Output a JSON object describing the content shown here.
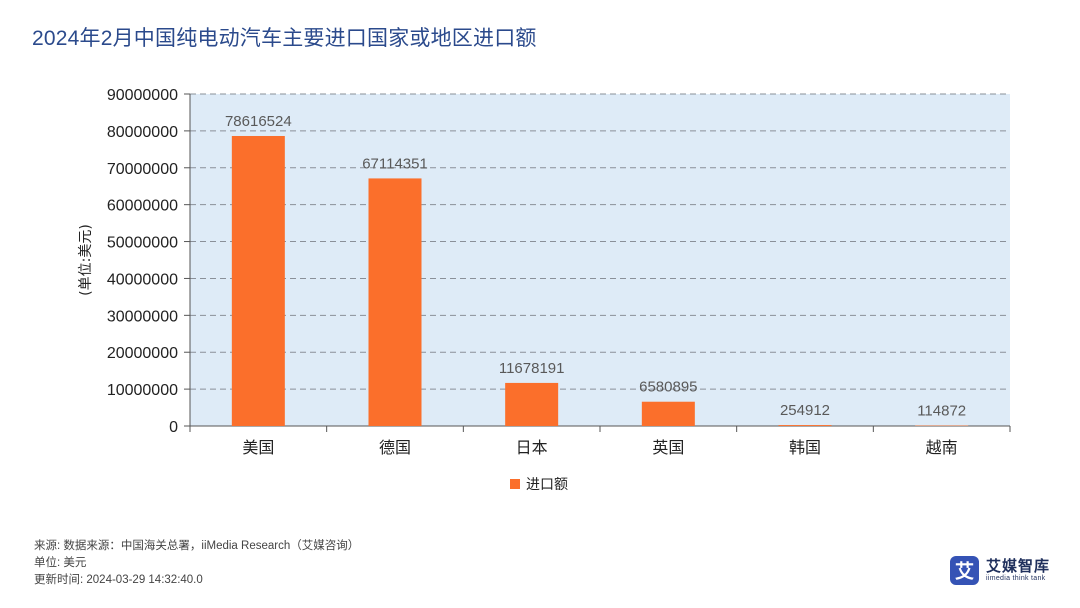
{
  "title": "2024年2月中国纯电动汽车主要进口国家或地区进口额",
  "chart_data": {
    "type": "bar",
    "title": "2024年2月中国纯电动汽车主要进口国家或地区进口额",
    "categories": [
      "美国",
      "德国",
      "日本",
      "英国",
      "韩国",
      "越南"
    ],
    "series": [
      {
        "name": "进口额",
        "values": [
          78616524,
          67114351,
          11678191,
          6580895,
          254912,
          114872
        ]
      }
    ],
    "data_labels": [
      "78616524",
      "67114351",
      "11678191",
      "6580895",
      "254912",
      "114872"
    ],
    "ylabel": "(单位:美元)",
    "xlabel": "",
    "ylim": [
      0,
      90000000
    ],
    "yticks": [
      0,
      10000000,
      20000000,
      30000000,
      40000000,
      50000000,
      60000000,
      70000000,
      80000000,
      90000000
    ],
    "ytick_labels": [
      "0",
      "10000000",
      "20000000",
      "30000000",
      "40000000",
      "50000000",
      "60000000",
      "70000000",
      "80000000",
      "90000000"
    ],
    "grid": true,
    "legend": "bottom-center",
    "legend_label": "进口额"
  },
  "footer": {
    "source": "来源: 数据来源：中国海关总署，iiMedia Research（艾媒咨询）",
    "unit": "单位: 美元",
    "updated": "更新时间: 2024-03-29 14:32:40.0"
  },
  "brand": {
    "glyph": "艾",
    "name": "艾媒智库",
    "sub": "iimedia think tank"
  },
  "colors": {
    "bar": "#fb6f2b",
    "plot_bg": "#deebf7",
    "title": "#2b4a8c",
    "brand": "#3553b5"
  }
}
